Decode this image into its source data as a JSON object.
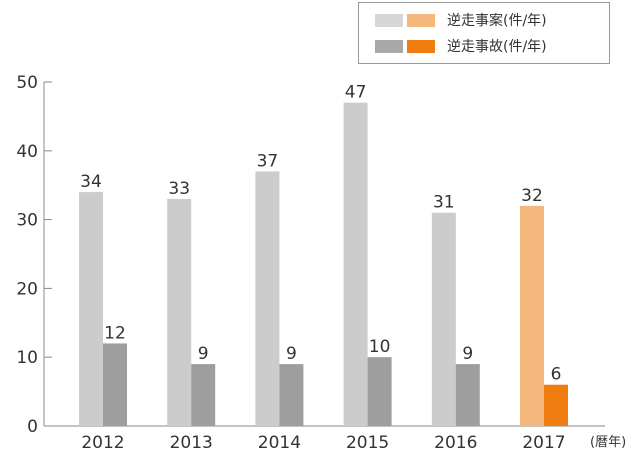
{
  "chart_data": {
    "type": "bar",
    "categories": [
      "2012",
      "2013",
      "2014",
      "2015",
      "2016",
      "2017"
    ],
    "series": [
      {
        "name": "逆走事案(件/年)",
        "values": [
          34,
          33,
          37,
          47,
          31,
          32
        ],
        "color": "#cccccc",
        "highlight_color": "#f5b87c"
      },
      {
        "name": "逆走事故(件/年)",
        "values": [
          12,
          9,
          9,
          10,
          9,
          6
        ],
        "color": "#9e9e9e",
        "highlight_color": "#ef7d10"
      }
    ],
    "highlight_category": "2017",
    "x_unit_label": "(暦年)",
    "ylim": [
      0,
      50
    ],
    "yticks": [
      0,
      10,
      20,
      30,
      40,
      50
    ],
    "grid": false,
    "legend_position": "top-right"
  }
}
